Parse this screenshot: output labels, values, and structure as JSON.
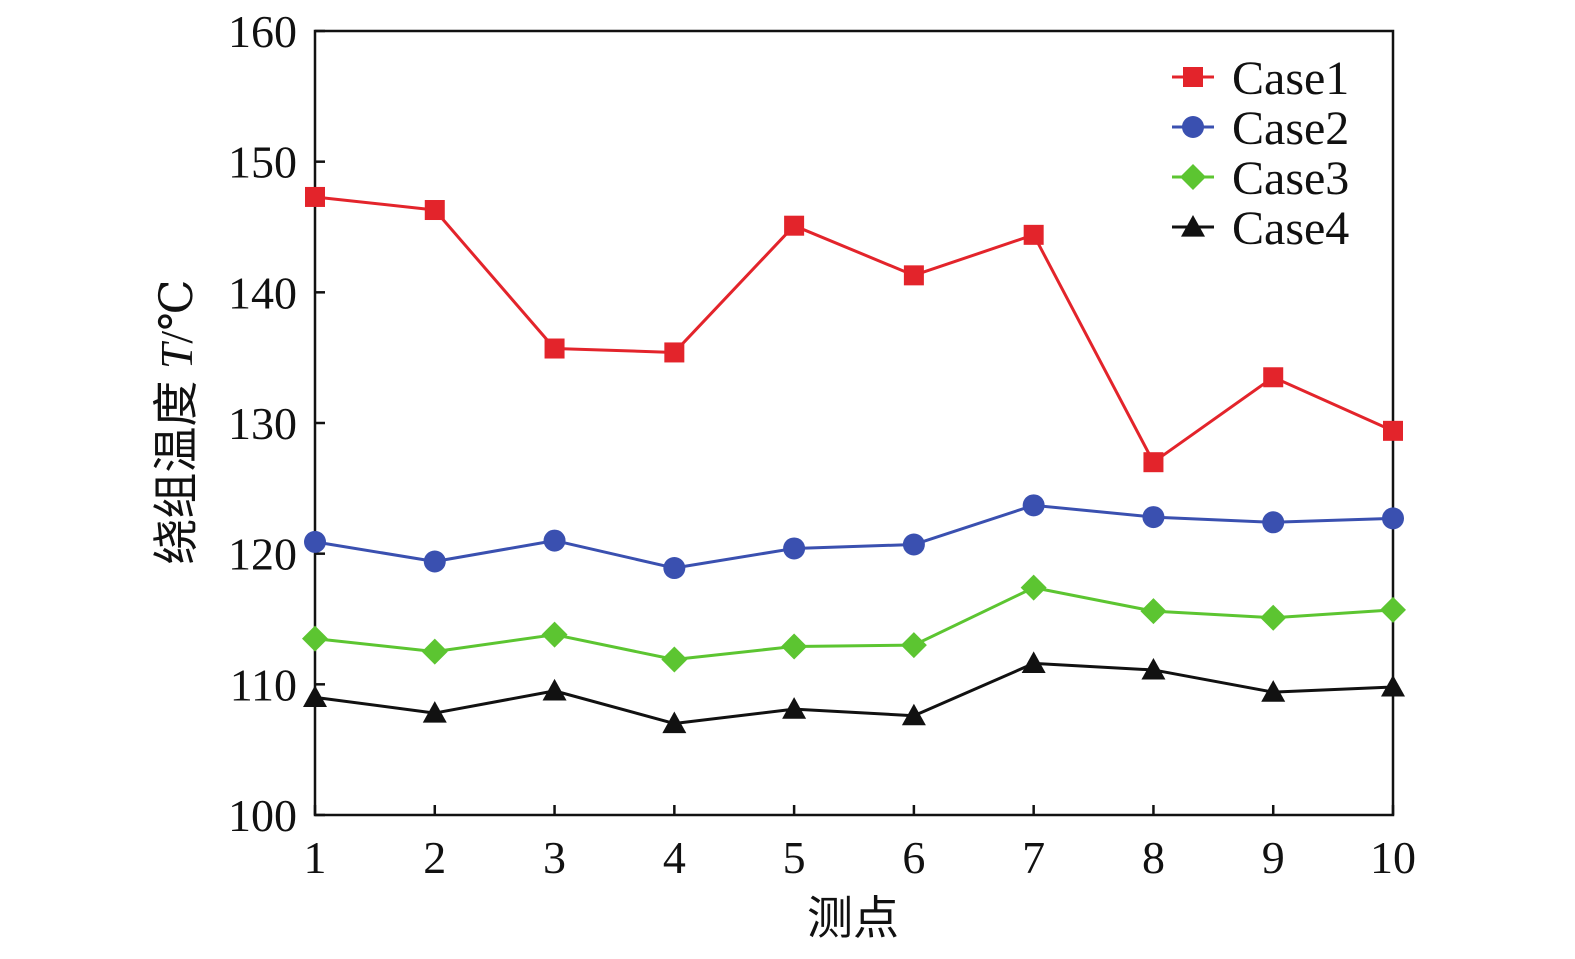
{
  "chart_data": {
    "type": "line",
    "title": "",
    "xlabel": "测点",
    "ylabel_text": "绕组温度 ",
    "ylabel_var": "T",
    "ylabel_unit": "/℃",
    "x": [
      1,
      2,
      3,
      4,
      5,
      6,
      7,
      8,
      9,
      10
    ],
    "x_tick_labels": [
      "1",
      "2",
      "3",
      "4",
      "5",
      "6",
      "7",
      "8",
      "9",
      "10"
    ],
    "xlim": [
      1,
      10
    ],
    "ylim": [
      100,
      160
    ],
    "y_ticks": [
      100,
      110,
      120,
      130,
      140,
      150,
      160
    ],
    "y_tick_labels": [
      "100",
      "110",
      "120",
      "130",
      "140",
      "150",
      "160"
    ],
    "grid": false,
    "legend_position": "top-right",
    "series": [
      {
        "name": "Case1",
        "color": "#e3242b",
        "marker": "square",
        "values": [
          147.3,
          146.3,
          135.7,
          135.4,
          145.1,
          141.3,
          144.4,
          127.0,
          133.5,
          129.4
        ]
      },
      {
        "name": "Case2",
        "color": "#3a50b0",
        "marker": "circle",
        "values": [
          120.9,
          119.4,
          121.0,
          118.9,
          120.4,
          120.7,
          123.7,
          122.8,
          122.4,
          122.7
        ]
      },
      {
        "name": "Case3",
        "color": "#5cc531",
        "marker": "diamond",
        "values": [
          113.5,
          112.5,
          113.8,
          111.9,
          112.9,
          113.0,
          117.4,
          115.6,
          115.1,
          115.7
        ]
      },
      {
        "name": "Case4",
        "color": "#111111",
        "marker": "triangle",
        "values": [
          109.0,
          107.8,
          109.5,
          107.0,
          108.1,
          107.6,
          111.6,
          111.1,
          109.4,
          109.8
        ]
      }
    ]
  }
}
